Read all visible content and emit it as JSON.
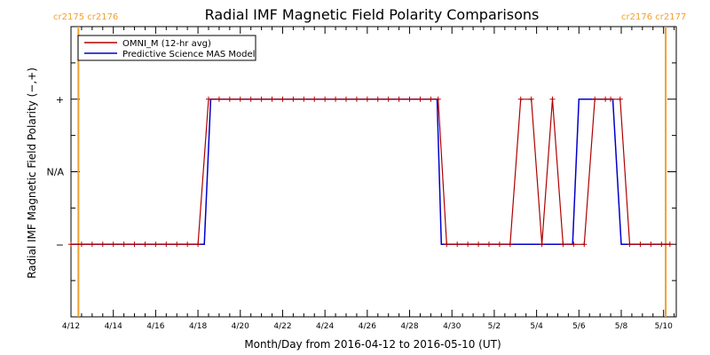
{
  "chart_data": {
    "type": "line",
    "title": "Radial IMF Magnetic Field Polarity Comparisons",
    "xlabel": "Month/Day from 2016-04-12 to 2016-05-10 (UT)",
    "ylabel": "Radial IMF Magnetic Field Polarity (−,+)",
    "x_tick_labels": [
      "4/12",
      "4/14",
      "4/16",
      "4/18",
      "4/20",
      "4/22",
      "4/24",
      "4/26",
      "4/28",
      "4/30",
      "5/2",
      "5/4",
      "5/6",
      "5/8",
      "5/10"
    ],
    "y_tick_labels": [
      "−",
      "N/A",
      "+"
    ],
    "y_levels": [
      -1,
      0,
      1
    ],
    "x_range_days": [
      0,
      28.6
    ],
    "y_range": [
      -2,
      2
    ],
    "legend_position": "top-left",
    "carrington_labels": {
      "left": "cr2175 cr2176",
      "right": "cr2176 cr2177"
    },
    "carrington_boundaries_days": [
      0.35,
      28.1
    ],
    "colors": {
      "omni": "#b00000",
      "model": "#0000cc",
      "carrington": "#f0a030",
      "axis": "#000000"
    },
    "series": [
      {
        "name": "OMNI_M (12-hr avg)",
        "points": [
          [
            0.0,
            -1
          ],
          [
            0.5,
            -1
          ],
          [
            1.0,
            -1
          ],
          [
            1.5,
            -1
          ],
          [
            2.0,
            -1
          ],
          [
            2.5,
            -1
          ],
          [
            3.0,
            -1
          ],
          [
            3.5,
            -1
          ],
          [
            4.0,
            -1
          ],
          [
            4.5,
            -1
          ],
          [
            5.0,
            -1
          ],
          [
            5.5,
            -1
          ],
          [
            6.0,
            -1
          ],
          [
            6.5,
            1
          ],
          [
            7.0,
            1
          ],
          [
            7.5,
            1
          ],
          [
            8.0,
            1
          ],
          [
            8.5,
            1
          ],
          [
            9.0,
            1
          ],
          [
            9.5,
            1
          ],
          [
            10.0,
            1
          ],
          [
            10.5,
            1
          ],
          [
            11.0,
            1
          ],
          [
            11.5,
            1
          ],
          [
            12.0,
            1
          ],
          [
            12.5,
            1
          ],
          [
            13.0,
            1
          ],
          [
            13.5,
            1
          ],
          [
            14.0,
            1
          ],
          [
            14.5,
            1
          ],
          [
            15.0,
            1
          ],
          [
            15.5,
            1
          ],
          [
            16.0,
            1
          ],
          [
            16.5,
            1
          ],
          [
            17.0,
            1
          ],
          [
            17.5,
            1
          ],
          [
            18.0,
            1
          ],
          [
            18.5,
            1
          ],
          [
            19.0,
            1
          ],
          [
            19.5,
            1
          ],
          [
            20.0,
            1
          ],
          [
            20.5,
            1
          ],
          [
            21.0,
            1
          ],
          [
            21.5,
            1
          ],
          [
            22.0,
            1
          ],
          [
            22.5,
            1
          ],
          [
            23.0,
            1
          ],
          [
            23.5,
            1
          ],
          [
            24.0,
            1
          ],
          [
            24.5,
            1
          ],
          [
            25.0,
            1
          ],
          [
            25.5,
            1
          ],
          [
            25.95,
            1
          ],
          [
            26.4,
            -1
          ],
          [
            26.9,
            -1
          ],
          [
            27.4,
            -1
          ],
          [
            27.9,
            -1
          ],
          [
            28.3,
            -1
          ]
        ],
        "override_points": [
          [
            17.35,
            1
          ],
          [
            17.75,
            -1
          ],
          [
            18.25,
            -1
          ],
          [
            18.75,
            -1
          ],
          [
            19.25,
            -1
          ],
          [
            19.75,
            -1
          ],
          [
            20.25,
            -1
          ],
          [
            20.75,
            -1
          ],
          [
            21.25,
            1
          ],
          [
            21.75,
            1
          ],
          [
            22.25,
            -1
          ],
          [
            22.75,
            1
          ],
          [
            23.25,
            -1
          ],
          [
            23.75,
            -1
          ],
          [
            24.25,
            -1
          ],
          [
            24.75,
            1
          ],
          [
            25.25,
            1
          ]
        ]
      },
      {
        "name": "Predictive Science MAS Model",
        "segments": [
          [
            [
              0.0,
              -1
            ],
            [
              6.0,
              -1
            ],
            [
              6.3,
              -1
            ],
            [
              6.6,
              1
            ],
            [
              17.3,
              1
            ],
            [
              17.5,
              -1
            ],
            [
              23.7,
              -1
            ],
            [
              24.0,
              1
            ],
            [
              25.6,
              1
            ],
            [
              26.0,
              -1
            ],
            [
              28.3,
              -1
            ]
          ]
        ]
      }
    ]
  }
}
